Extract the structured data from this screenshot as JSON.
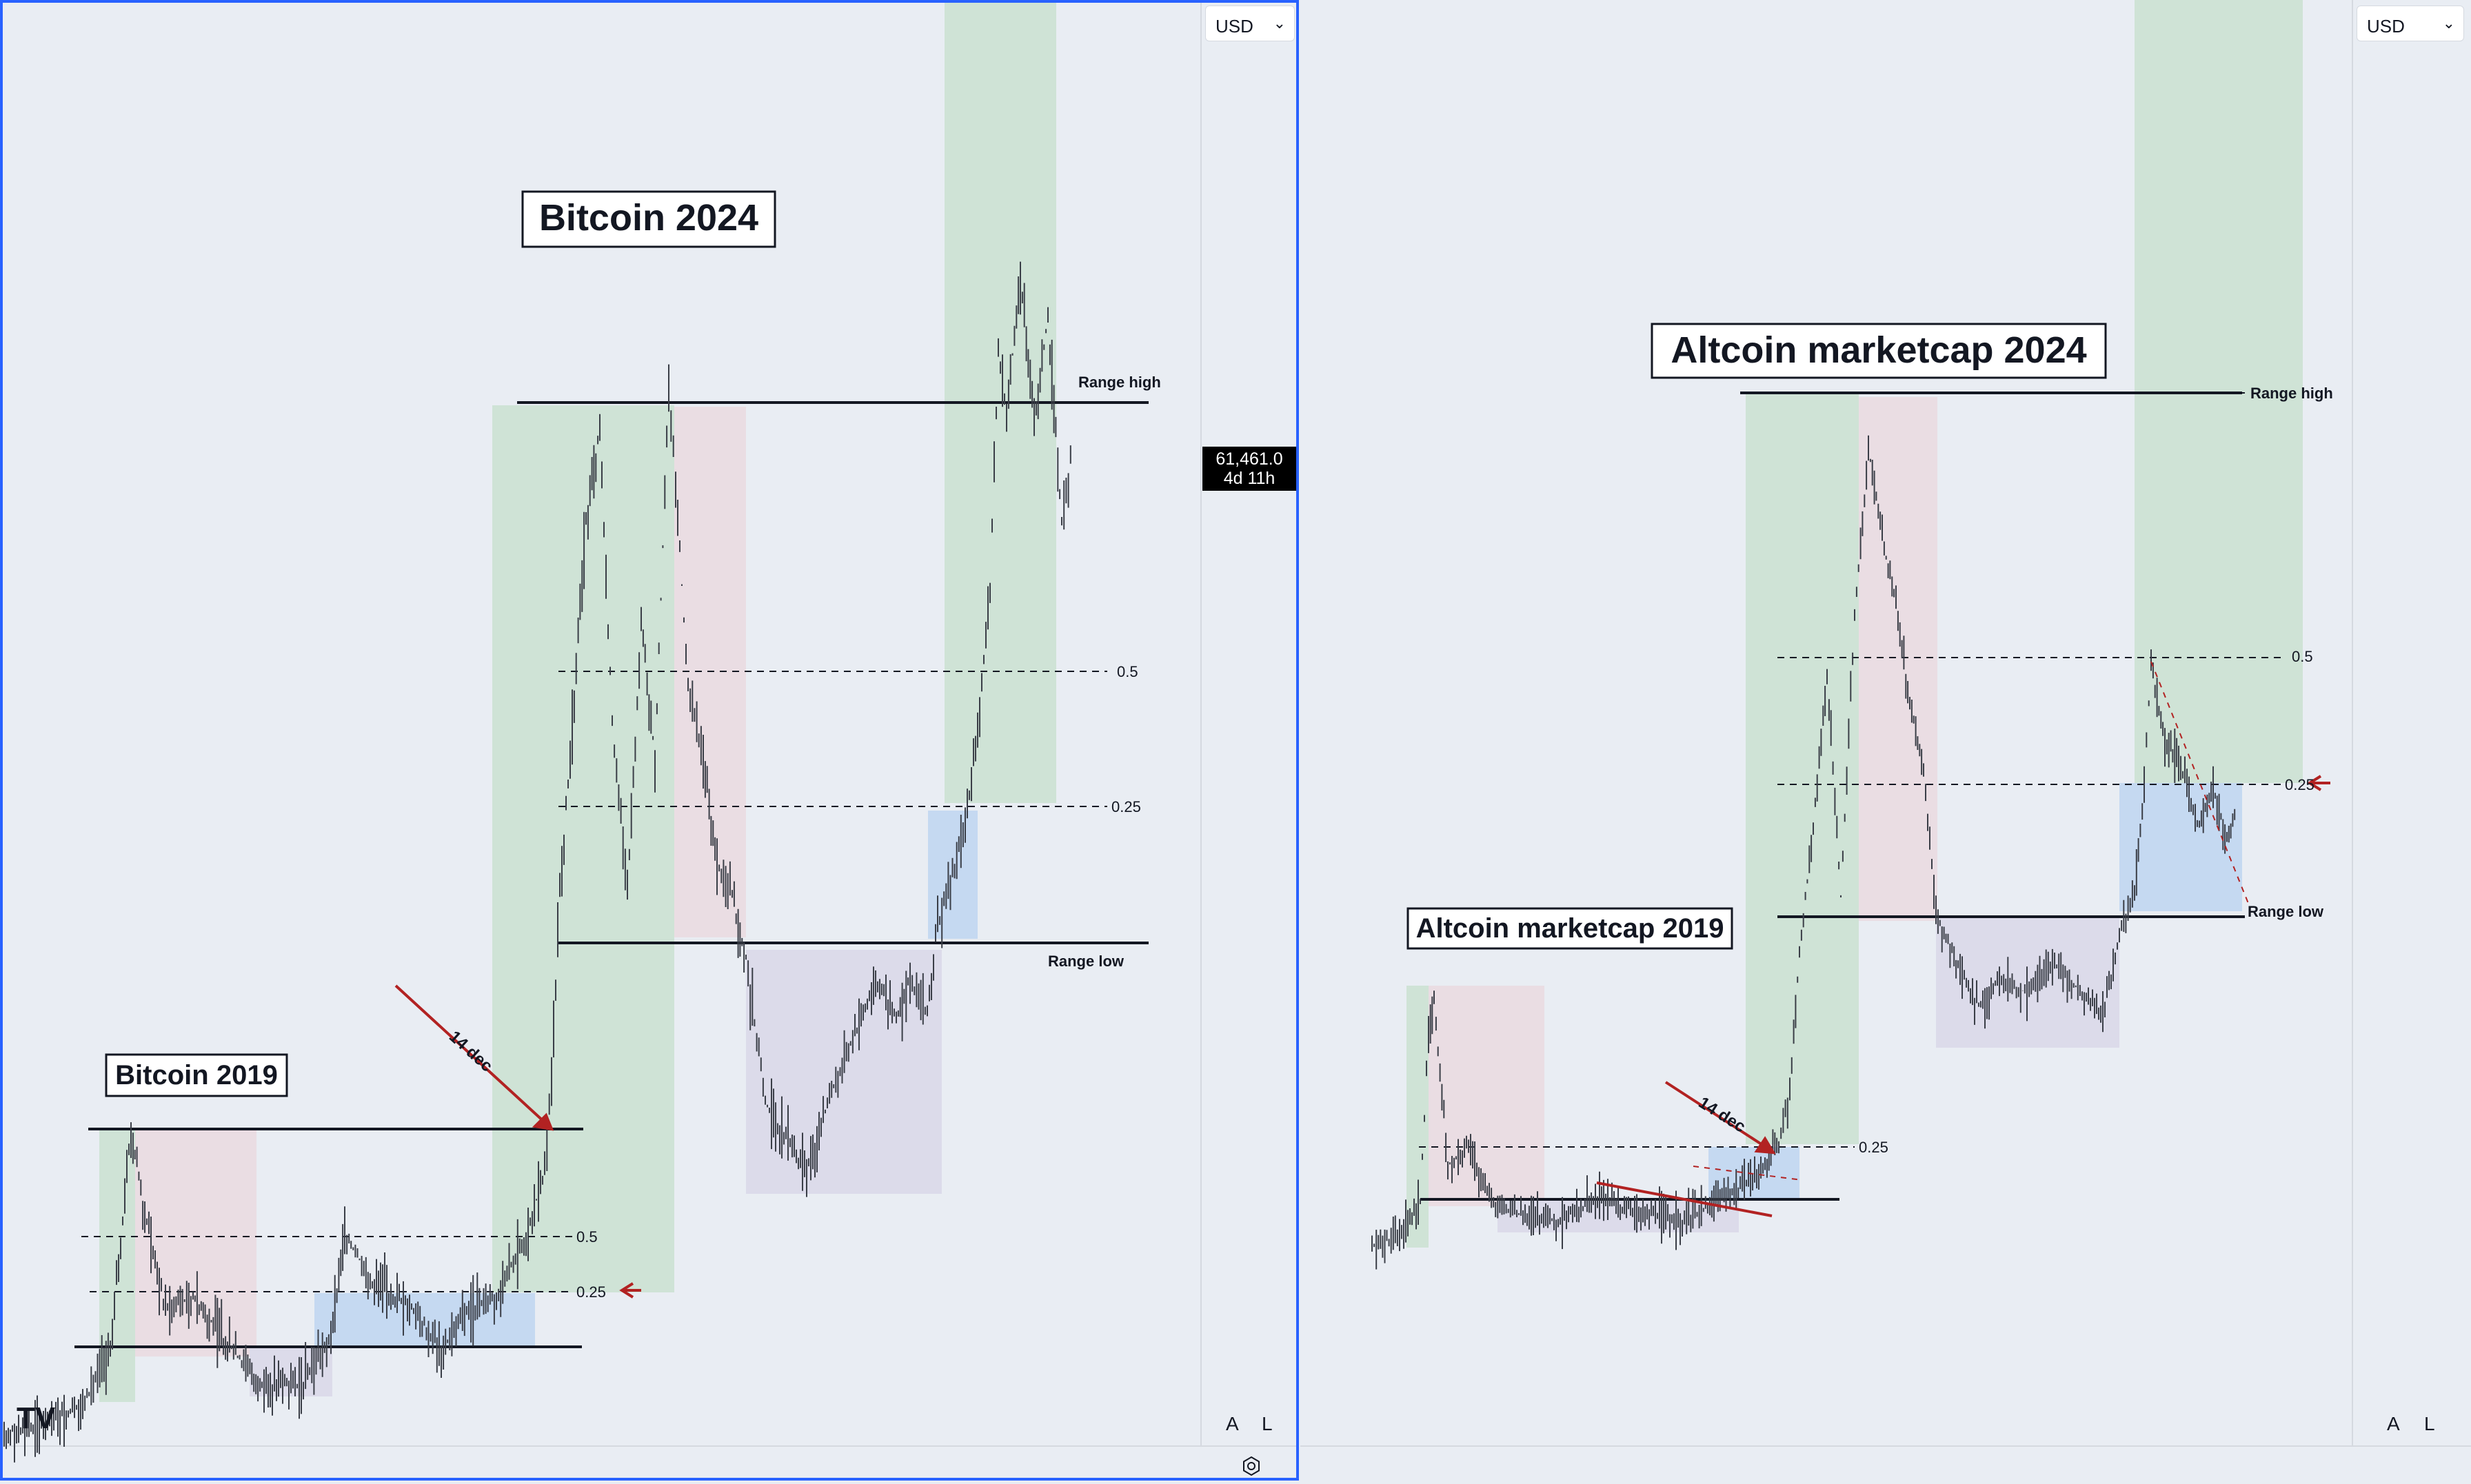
{
  "colors": {
    "background": "#e9edf3",
    "green_zone": "#cfe3d6",
    "red_zone": "#eadde3",
    "purple_zone": "#dcdbea",
    "blue_zone": "#c5d9f1",
    "active_border": "#2962ff",
    "arrow": "#b22222",
    "price_tag_bg": "#000000"
  },
  "left_panel": {
    "currency": "USD",
    "title_big": "Bitcoin 2024",
    "title_small": "Bitcoin 2019",
    "range_high": "Range high",
    "range_low": "Range low",
    "fib_05": "0.5",
    "fib_025": "0.25",
    "fib_05_small": "0.5",
    "fib_025_small": "0.25",
    "arrow_label": "14 dec",
    "price_tag": "61,461.0",
    "countdown": "4d 11h",
    "axis_auto": "A",
    "axis_log": "L",
    "logo": "TV",
    "settings_icon": "gear-icon"
  },
  "right_panel": {
    "currency": "USD",
    "title_big": "Altcoin marketcap 2024",
    "title_small": "Altcoin marketcap 2019",
    "range_high": "Range high",
    "range_low": "Range low",
    "fib_05": "0.5",
    "fib_025": "0.25",
    "fib_025_small": "0.25",
    "arrow_label": "14 dec",
    "axis_auto": "A",
    "axis_log": "L"
  }
}
